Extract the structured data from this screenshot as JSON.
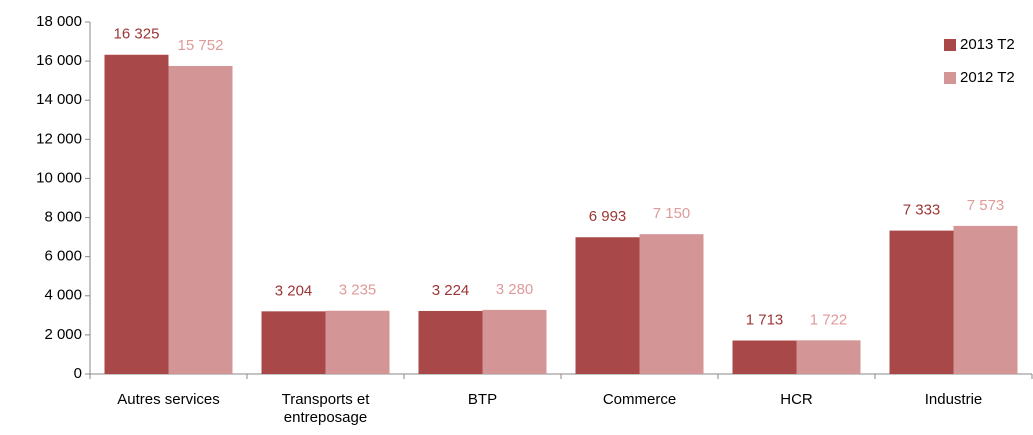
{
  "chart_data": {
    "type": "bar",
    "categories": [
      "Autres services",
      "Transports et entreposage",
      "BTP",
      "Commerce",
      "HCR",
      "Industrie"
    ],
    "series": [
      {
        "name": "2013 T2",
        "color": "#a84848",
        "label_color": "#9c3535",
        "values": [
          16325,
          3204,
          3224,
          6993,
          1713,
          7333
        ],
        "value_labels": [
          "16 325",
          "3 204",
          "3 224",
          "6 993",
          "1 713",
          "7 333"
        ]
      },
      {
        "name": "2012 T2",
        "color": "#d39595",
        "label_color": "#df9a9a",
        "values": [
          15752,
          3235,
          3280,
          7150,
          1722,
          7573
        ],
        "value_labels": [
          "15 752",
          "3 235",
          "3 280",
          "7 150",
          "1 722",
          "7 573"
        ]
      }
    ],
    "ylim": [
      0,
      18000
    ],
    "yticks": [
      {
        "value": 0,
        "label": "0"
      },
      {
        "value": 2000,
        "label": "2 000"
      },
      {
        "value": 4000,
        "label": "4 000"
      },
      {
        "value": 6000,
        "label": "6 000"
      },
      {
        "value": 8000,
        "label": "8 000"
      },
      {
        "value": 10000,
        "label": "10 000"
      },
      {
        "value": 12000,
        "label": "12 000"
      },
      {
        "value": 14000,
        "label": "14 000"
      },
      {
        "value": 16000,
        "label": "16 000"
      },
      {
        "value": 18000,
        "label": "18 000"
      }
    ],
    "legend": "upper right",
    "grid": false
  }
}
